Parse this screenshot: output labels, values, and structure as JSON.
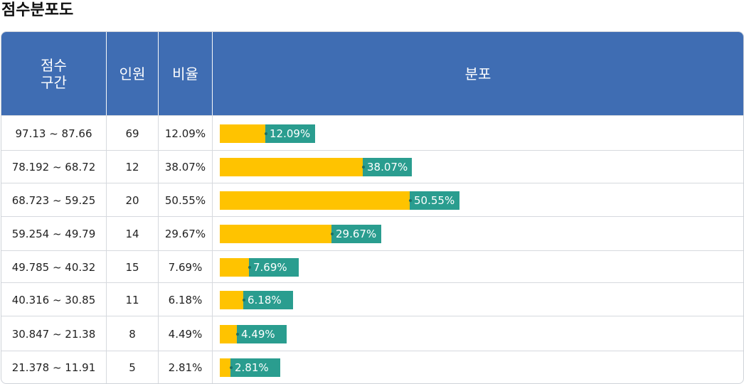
{
  "title": "점수분포도",
  "headers": {
    "range_line1": "점수",
    "range_line2": "구간",
    "count": "인원",
    "ratio": "비율",
    "distribution": "분포"
  },
  "colors": {
    "header_bg": "#3f6db3",
    "bar_yellow": "#ffc300",
    "bar_teal": "#2a9d8f"
  },
  "chart_data": {
    "type": "bar",
    "title": "점수분포도",
    "categories": [
      "97.13 ~ 87.66",
      "78.192 ~ 68.72",
      "68.723 ~ 59.25",
      "59.254 ~ 49.79",
      "49.785 ~ 40.32",
      "40.316 ~ 30.85",
      "30.847 ~ 21.38",
      "21.378 ~ 11.91"
    ],
    "series": [
      {
        "name": "인원",
        "values": [
          69,
          12,
          20,
          14,
          15,
          11,
          8,
          5
        ]
      },
      {
        "name": "비율",
        "values": [
          12.09,
          38.07,
          50.55,
          29.67,
          7.69,
          6.18,
          4.49,
          2.81
        ]
      }
    ],
    "ratio_labels": [
      "12.09%",
      "38.07%",
      "50.55%",
      "29.67%",
      "7.69%",
      "6.18%",
      "4.49%",
      "2.81%"
    ],
    "xlabel": "분포",
    "ylabel": "점수구간"
  }
}
